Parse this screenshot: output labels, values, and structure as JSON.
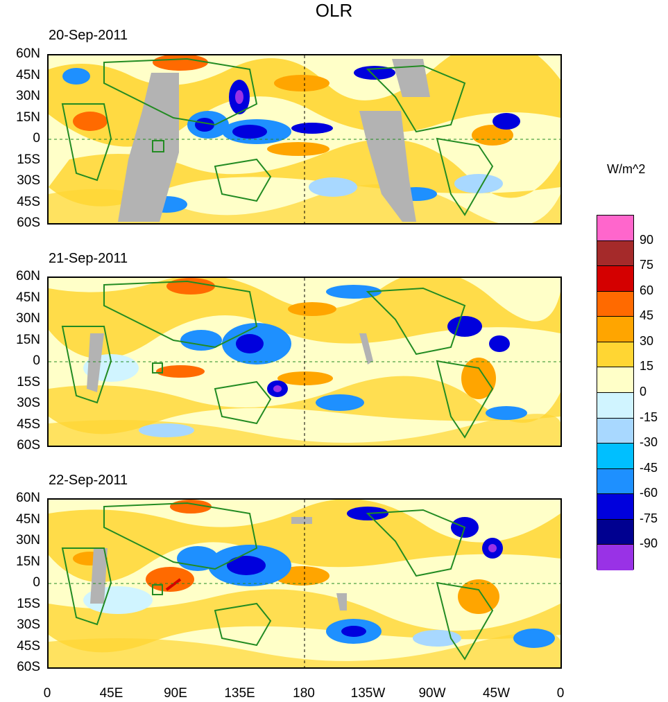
{
  "title": "OLR",
  "colorbar": {
    "units": "W/m^2",
    "colors": [
      "#ff66cc",
      "#a52a2a",
      "#d40000",
      "#ff6a00",
      "#ffa500",
      "#ffd633",
      "#ffffc8",
      "#d0f4ff",
      "#a8d8ff",
      "#00bfff",
      "#1e90ff",
      "#0000dd",
      "#000090",
      "#9932e6"
    ],
    "labels": [
      "90",
      "75",
      "60",
      "45",
      "30",
      "15",
      "0",
      "-15",
      "-30",
      "-45",
      "-60",
      "-75",
      "-90"
    ]
  },
  "axes": {
    "lat_labels": [
      "60N",
      "45N",
      "30N",
      "15N",
      "0",
      "15S",
      "30S",
      "45S",
      "60S"
    ],
    "lon_labels": [
      "0",
      "45E",
      "90E",
      "135E",
      "180",
      "135W",
      "90W",
      "45W",
      "0"
    ]
  },
  "panels": [
    {
      "date": "20-Sep-2011"
    },
    {
      "date": "21-Sep-2011"
    },
    {
      "date": "22-Sep-2011"
    }
  ]
}
